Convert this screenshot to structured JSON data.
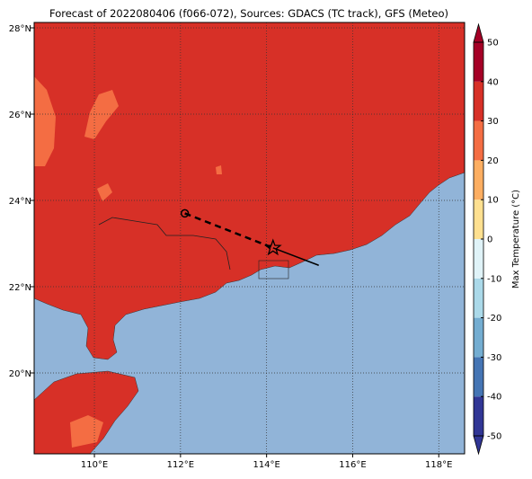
{
  "map": {
    "title": "Forecast of 2022080406 (f066-072), Sources: GDACS (TC track), GFS (Meteo)",
    "xlim": [
      108.6,
      118.6
    ],
    "ylim": [
      18.125,
      28.125
    ],
    "xticks": [
      {
        "value": 110,
        "label": "110°E"
      },
      {
        "value": 112,
        "label": "112°E"
      },
      {
        "value": 114,
        "label": "114°E"
      },
      {
        "value": 116,
        "label": "116°E"
      },
      {
        "value": 118,
        "label": "118°E"
      }
    ],
    "yticks": [
      {
        "value": 20,
        "label": "20°N"
      },
      {
        "value": 22,
        "label": "22°N"
      },
      {
        "value": 24,
        "label": "24°N"
      },
      {
        "value": 26,
        "label": "26°N"
      },
      {
        "value": 28,
        "label": "28°N"
      }
    ],
    "track": {
      "lon": [
        112.1,
        114.15,
        115.2
      ],
      "lat": [
        23.7,
        22.9,
        22.5
      ]
    },
    "colorbar": {
      "label": "Max Temperature (°C)",
      "ticks": [
        -50,
        -40,
        -30,
        -20,
        -10,
        0,
        10,
        20,
        30,
        40,
        50
      ],
      "colors": [
        "#313695",
        "#4575b4",
        "#74add1",
        "#abd9e9",
        "#e0f3f8",
        "#fee090",
        "#fdae61",
        "#f46d43",
        "#d73027",
        "#a50026"
      ]
    }
  }
}
